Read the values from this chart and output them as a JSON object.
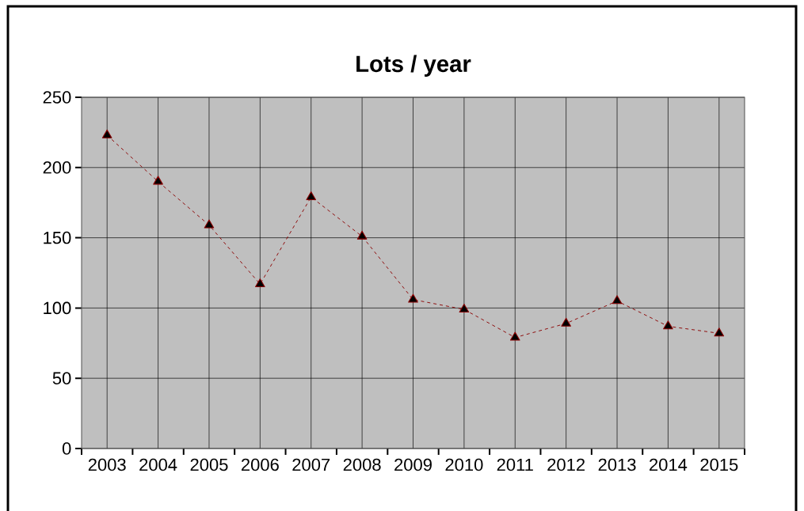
{
  "chart_data": {
    "type": "line",
    "title": "Lots / year",
    "categories": [
      "2003",
      "2004",
      "2005",
      "2006",
      "2007",
      "2008",
      "2009",
      "2010",
      "2011",
      "2012",
      "2013",
      "2014",
      "2015"
    ],
    "values": [
      223,
      190,
      159,
      117,
      179,
      151,
      106,
      99,
      79,
      89,
      105,
      87,
      82
    ],
    "color": "#8b0000",
    "marker": "triangle",
    "line_style": "dashed",
    "ylim": [
      0,
      250
    ],
    "yticks": [
      0,
      50,
      100,
      150,
      200,
      250
    ],
    "grid": true
  }
}
